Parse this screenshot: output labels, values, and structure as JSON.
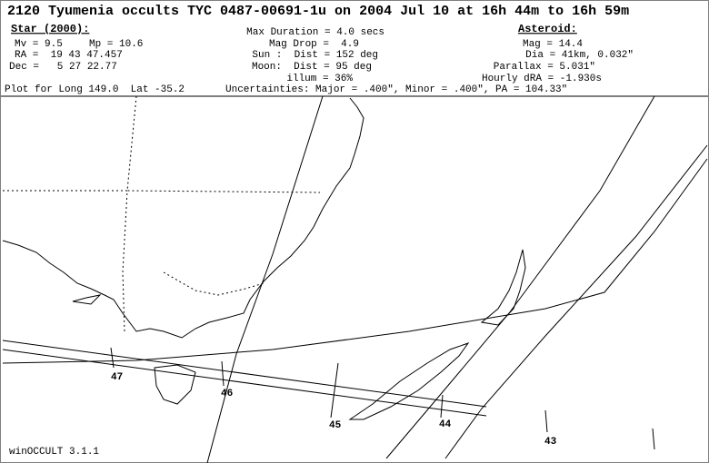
{
  "header": {
    "title": "2120 Tyumenia occults TYC 0487-00691-1u on 2004 Jul 10 at 16h 44m to 16h 59m"
  },
  "star": {
    "heading": "Star (2000):",
    "mv": "Mv = 9.5",
    "mp": "Mp = 10.6",
    "ra": "RA =  19 43 47.457",
    "dec": "Dec =   5 27 22.77",
    "plot_for": "Plot for Long 149.0  Lat -35.2"
  },
  "event": {
    "max_duration": "Max Duration = 4.0 secs",
    "mag_drop": "Mag Drop =  4.9",
    "sun": "Sun :  Dist = 152 deg",
    "moon": "Moon:  Dist = 95 deg",
    "illum": "illum = 36%",
    "uncertainties": "Uncertainties: Major = .400\", Minor = .400\", PA = 104.33\""
  },
  "asteroid": {
    "heading": "Asteroid:",
    "mag": "Mag = 14.4",
    "dia": "Dia = 41km, 0.032\"",
    "parallax": "Parallax = 5.031\"",
    "hourly_dra": "Hourly dRA = -1.930s"
  },
  "map": {
    "time_labels": [
      "47",
      "46",
      "45",
      "44",
      "43"
    ]
  },
  "footer": {
    "version": "winOCCULT 3.1.1"
  }
}
